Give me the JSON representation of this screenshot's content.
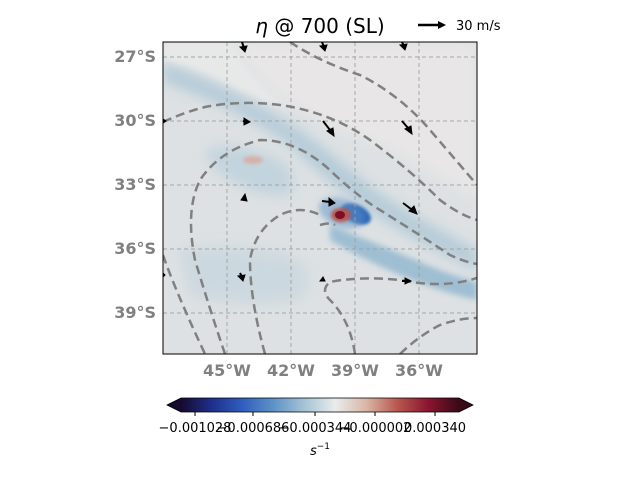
{
  "title": {
    "symbol": "η",
    "rest": " @ 700 (SL)"
  },
  "quiver_key": {
    "label": "30 m/s"
  },
  "map": {
    "lat_labels": [
      "27°S",
      "30°S",
      "33°S",
      "36°S",
      "39°S"
    ],
    "lat_values": [
      -27,
      -30,
      -33,
      -36,
      -39
    ],
    "lon_labels": [
      "45°W",
      "42°W",
      "39°W",
      "36°W"
    ],
    "lon_values": [
      -45,
      -42,
      -39,
      -36
    ],
    "lon_range": [
      -48,
      -33.3
    ],
    "lat_range": [
      -41.3,
      -26.6
    ],
    "grid": true,
    "contour_style": "dashed",
    "contour_color": "#808080",
    "label_color": "#808080"
  },
  "colorbar": {
    "tick_labels": [
      "−0.001028",
      "−0.000686",
      "−0.000344",
      "−0.000002",
      "0.000340"
    ],
    "tick_values": [
      -0.001028,
      -0.000686,
      -0.000344,
      -2e-06,
      0.00034
    ],
    "range": [
      -0.001199,
      0.000511
    ],
    "unit": "s",
    "unit_exp": "−1",
    "colormap": [
      "#160a2e",
      "#1f2f8c",
      "#2f5fbe",
      "#5f93c6",
      "#a6c3d6",
      "#e9ecec",
      "#d9b6a6",
      "#b8574f",
      "#8a1530",
      "#3a0a16"
    ],
    "extend": "both"
  }
}
